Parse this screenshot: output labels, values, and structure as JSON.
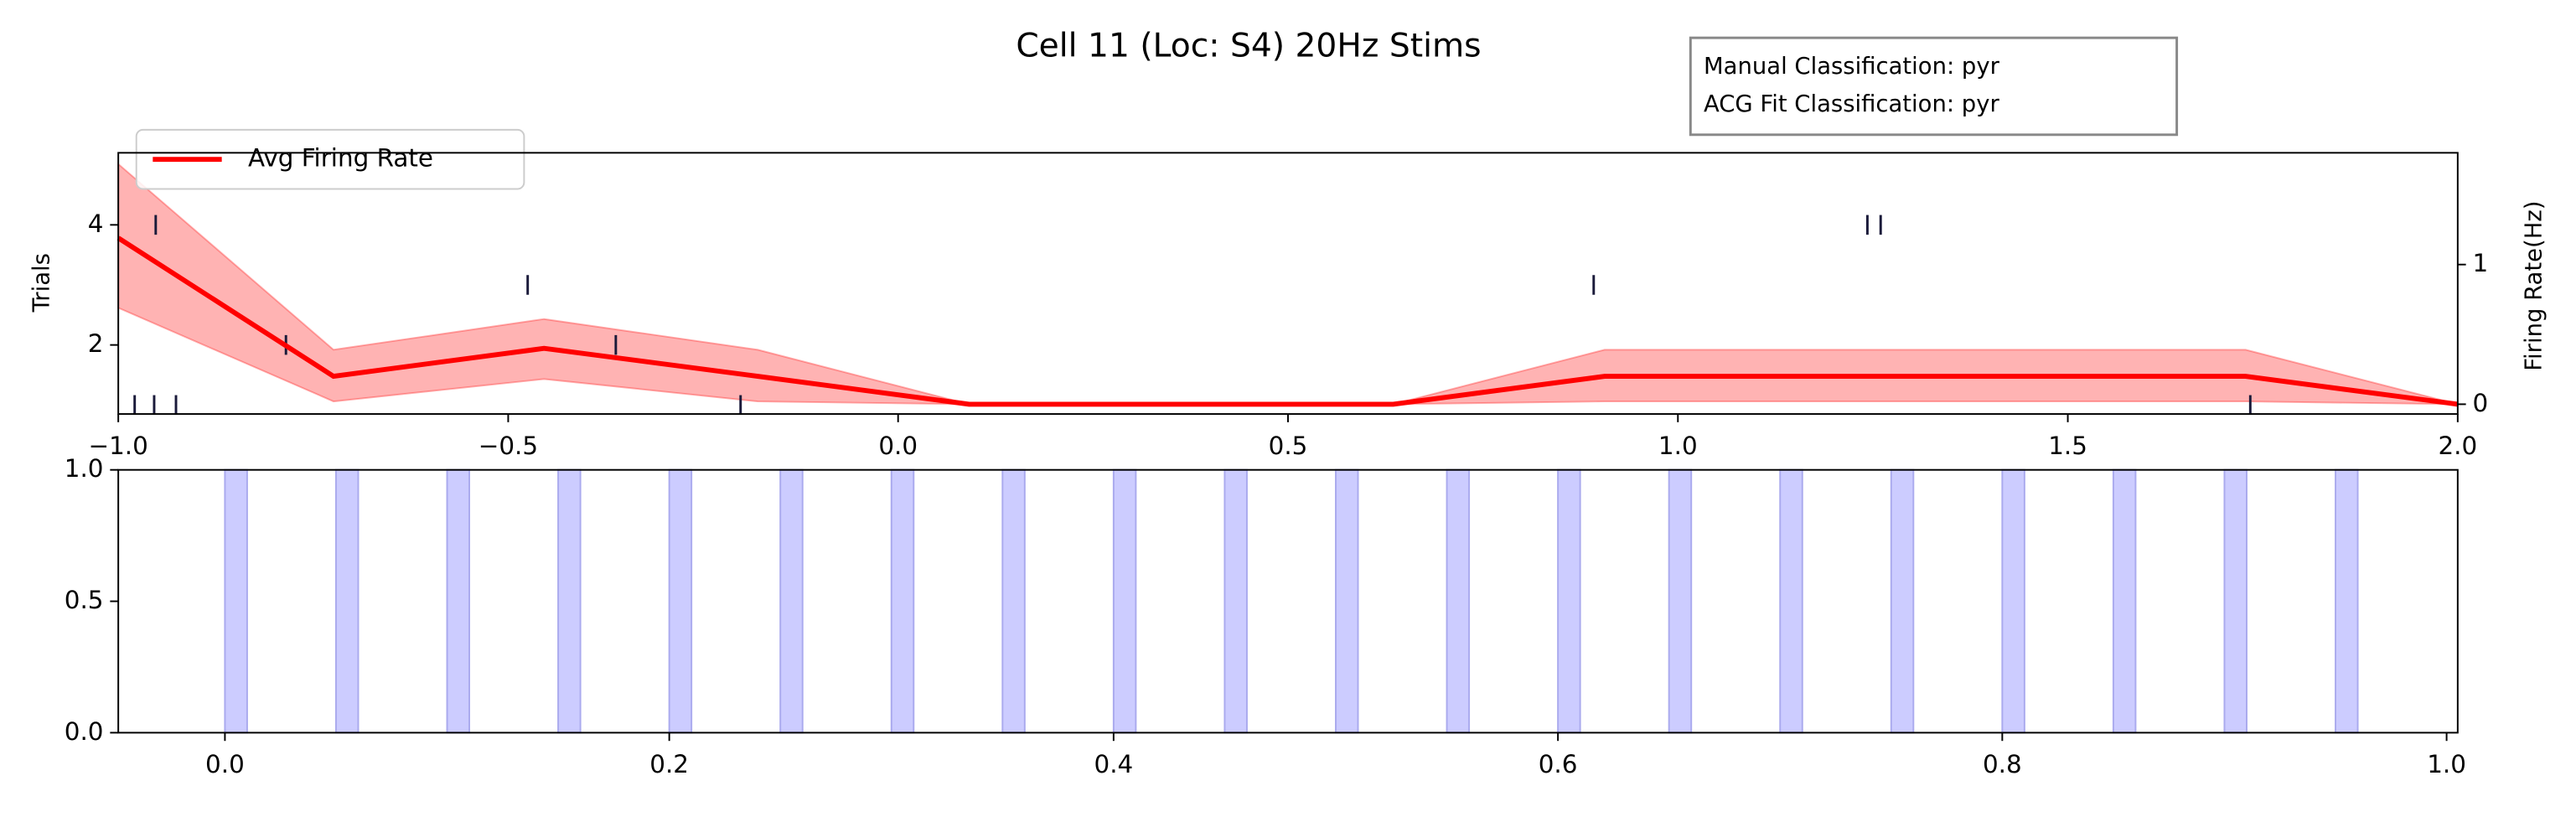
{
  "chart_data": [
    {
      "type": "line",
      "title": "Cell 11 (Loc: S4) 20Hz Stims",
      "text_box": [
        "Manual Classification: pyr",
        "ACG Fit Classification: pyr"
      ],
      "ylabel": "Trials",
      "y2label": "Firing Rate(Hz)",
      "xlim": [
        -1.0,
        2.0
      ],
      "xticks": [
        {
          "value": -1.0,
          "label": "−1.0"
        },
        {
          "value": -0.5,
          "label": "−0.5"
        },
        {
          "value": 0.0,
          "label": "0.0"
        },
        0.5,
        {
          "value": 1.0,
          "label": "1.0"
        },
        1.5,
        {
          "value": 2.0,
          "label": "2.0"
        }
      ],
      "ylim": [
        0.85,
        5.2
      ],
      "yticks": [
        2,
        4
      ],
      "y2lim": [
        -0.07,
        1.8
      ],
      "y2ticks": [
        0,
        1
      ],
      "legend": "upper left",
      "spikes": {
        "color": "#1a1a3a",
        "x": [
          -0.979,
          -0.954,
          -0.926,
          -0.202,
          1.734,
          -0.785,
          -0.362,
          -0.475,
          0.892,
          -0.952,
          1.243,
          1.26
        ],
        "y": [
          1,
          1,
          1,
          1,
          1,
          2,
          2,
          3,
          3,
          4,
          4,
          4
        ]
      },
      "series": [
        {
          "name": "Avg Firing Rate",
          "color": "#ff0000",
          "band_color": "#ff9999",
          "axis": "y2",
          "x": [
            -1.0,
            -0.724,
            -0.454,
            -0.18,
            0.091,
            0.635,
            0.906,
            1.728,
            2.0
          ],
          "values": [
            1.19,
            0.2,
            0.4,
            0.2,
            0,
            0,
            0.2,
            0.2,
            0
          ],
          "upper": [
            1.72,
            0.39,
            0.61,
            0.39,
            0,
            0,
            0.39,
            0.39,
            0
          ],
          "lower": [
            0.69,
            0.02,
            0.18,
            0.02,
            0,
            0,
            0.02,
            0.02,
            0
          ]
        }
      ]
    },
    {
      "type": "span",
      "xlim": [
        -0.048,
        1.005
      ],
      "xticks": [
        {
          "value": 0.0,
          "label": "0.0"
        },
        0.2,
        0.4,
        0.6,
        0.8,
        {
          "value": 1.0,
          "label": "1.0"
        }
      ],
      "ylim": [
        0,
        1
      ],
      "yticks": [
        {
          "value": 0.0,
          "label": "0.0"
        },
        0.5,
        {
          "value": 1.0,
          "label": "1.0"
        }
      ],
      "color": "#ccccff",
      "edge_color": "#aaaaee",
      "starts": [
        0.0,
        0.05,
        0.1,
        0.15,
        0.2,
        0.25,
        0.3,
        0.35,
        0.4,
        0.45,
        0.5,
        0.55,
        0.6,
        0.65,
        0.7,
        0.75,
        0.8,
        0.85,
        0.9,
        0.95
      ],
      "ends": [
        0.01,
        0.06,
        0.11,
        0.16,
        0.21,
        0.26,
        0.31,
        0.36,
        0.41,
        0.46,
        0.51,
        0.56,
        0.61,
        0.66,
        0.71,
        0.76,
        0.81,
        0.86,
        0.91,
        0.96
      ]
    }
  ]
}
